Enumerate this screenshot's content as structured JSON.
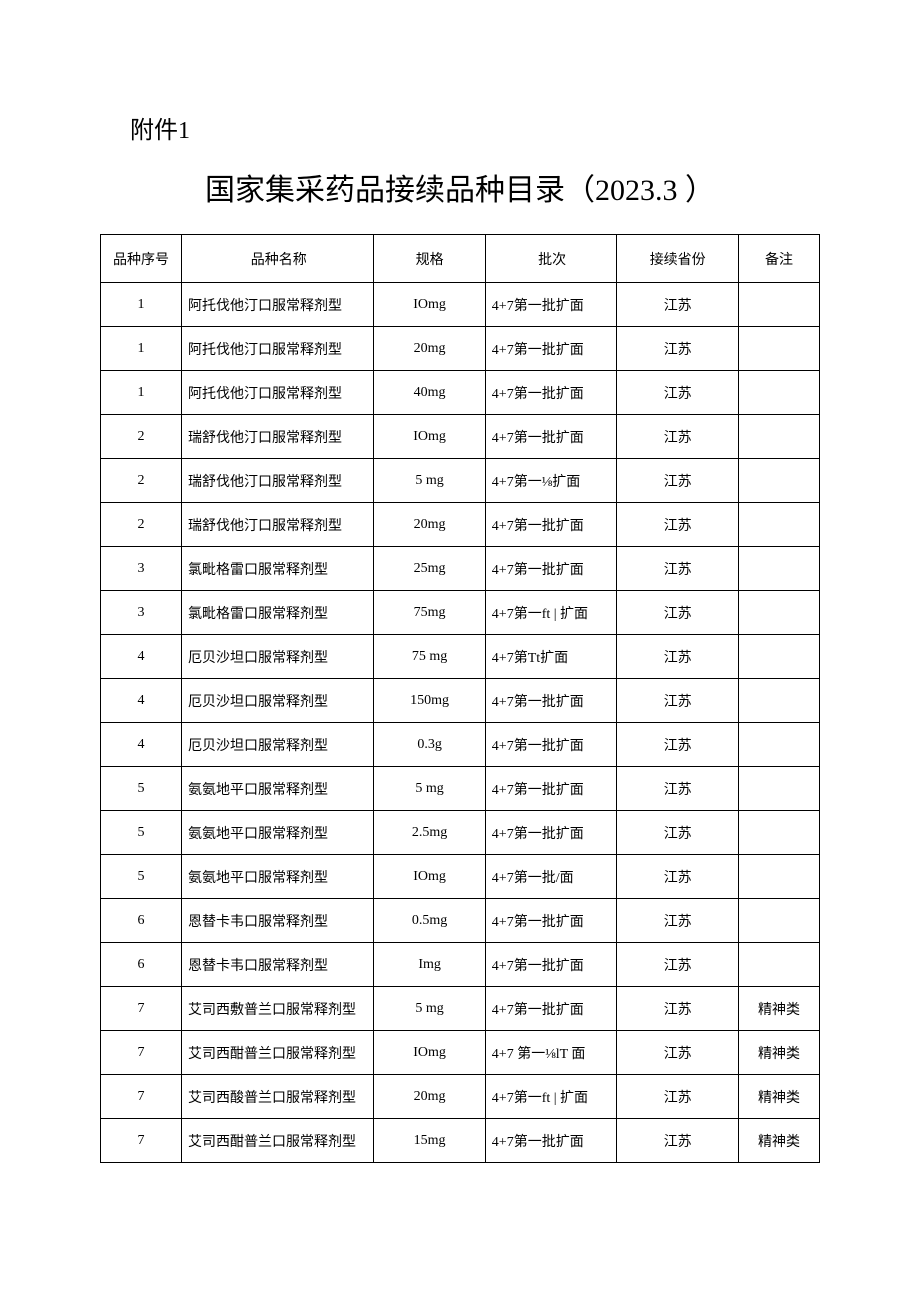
{
  "attachment_label": "附件1",
  "title": "国家集采药品接续品种目录（2023.3 ）",
  "columns": {
    "seq": "品种序号",
    "name": "品种名称",
    "spec": "规格",
    "batch": "批次",
    "province": "接续省份",
    "note": "备注"
  },
  "rows": [
    {
      "seq": "1",
      "name": "阿托伐他汀口服常释剂型",
      "spec": "IOmg",
      "batch": "4+7第一批扩面",
      "province": "江苏",
      "note": ""
    },
    {
      "seq": "1",
      "name": "阿托伐他汀口服常释剂型",
      "spec": "20mg",
      "batch": "4+7第一批扩面",
      "province": "江苏",
      "note": ""
    },
    {
      "seq": "1",
      "name": "阿托伐他汀口服常释剂型",
      "spec": "40mg",
      "batch": "4+7第一批扩面",
      "province": "江苏",
      "note": ""
    },
    {
      "seq": "2",
      "name": "瑞舒伐他汀口服常释剂型",
      "spec": "IOmg",
      "batch": "4+7第一批扩面",
      "province": "江苏",
      "note": ""
    },
    {
      "seq": "2",
      "name": "瑞舒伐他汀口服常释剂型",
      "spec": "5 mg",
      "batch": "4+7第一⅛扩面",
      "province": "江苏",
      "note": ""
    },
    {
      "seq": "2",
      "name": "瑞舒伐他汀口服常释剂型",
      "spec": "20mg",
      "batch": "4+7第一批扩面",
      "province": "江苏",
      "note": ""
    },
    {
      "seq": "3",
      "name": "氯毗格雷口服常释剂型",
      "spec": "25mg",
      "batch": "4+7第一批扩面",
      "province": "江苏",
      "note": ""
    },
    {
      "seq": "3",
      "name": "氯毗格雷口服常释剂型",
      "spec": "75mg",
      "batch": "4+7第一ft  | 扩面",
      "province": "江苏",
      "note": ""
    },
    {
      "seq": "4",
      "name": "厄贝沙坦口服常释剂型",
      "spec": "75 mg",
      "batch": "4+7第Tt扩面",
      "province": "江苏",
      "note": ""
    },
    {
      "seq": "4",
      "name": "厄贝沙坦口服常释剂型",
      "spec": "150mg",
      "batch": "4+7第一批扩面",
      "province": "江苏",
      "note": ""
    },
    {
      "seq": "4",
      "name": "厄贝沙坦口服常释剂型",
      "spec": "0.3g",
      "batch": "4+7第一批扩面",
      "province": "江苏",
      "note": ""
    },
    {
      "seq": "5",
      "name": "氨氨地平口服常释剂型",
      "spec": "5 mg",
      "batch": "4+7第一批扩面",
      "province": "江苏",
      "note": ""
    },
    {
      "seq": "5",
      "name": "氨氨地平口服常释剂型",
      "spec": "2.5mg",
      "batch": "4+7第一批扩面",
      "province": "江苏",
      "note": ""
    },
    {
      "seq": "5",
      "name": "氨氨地平口服常释剂型",
      "spec": "IOmg",
      "batch": "4+7第一批/面",
      "province": "江苏",
      "note": ""
    },
    {
      "seq": "6",
      "name": "恩替卡韦口服常释剂型",
      "spec": "0.5mg",
      "batch": "4+7第一批扩面",
      "province": "江苏",
      "note": ""
    },
    {
      "seq": "6",
      "name": "恩替卡韦口服常释剂型",
      "spec": "Img",
      "batch": "4+7第一批扩面",
      "province": "江苏",
      "note": ""
    },
    {
      "seq": "7",
      "name": "艾司西敷普兰口服常释剂型",
      "spec": "5 mg",
      "batch": "4+7第一批扩面",
      "province": "江苏",
      "note": "精神类"
    },
    {
      "seq": "7",
      "name": "艾司西酣普兰口服常释剂型",
      "spec": "IOmg",
      "batch": "4+7 第一⅛lT 面",
      "province": "江苏",
      "note": "精神类"
    },
    {
      "seq": "7",
      "name": "艾司西酸普兰口服常释剂型",
      "spec": "20mg",
      "batch": "4+7第一ft  | 扩面",
      "province": "江苏",
      "note": "精神类"
    },
    {
      "seq": "7",
      "name": "艾司西酣普兰口服常释剂型",
      "spec": "15mg",
      "batch": "4+7第一批扩面",
      "province": "江苏",
      "note": "精神类"
    }
  ]
}
